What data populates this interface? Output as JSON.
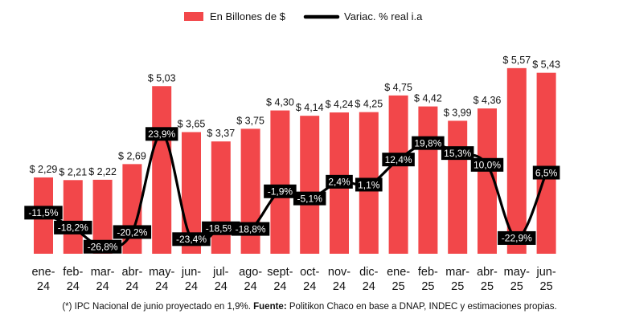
{
  "chart_data": {
    "type": "bar",
    "categories": [
      [
        "ene-",
        "24"
      ],
      [
        "feb-",
        "24"
      ],
      [
        "mar-",
        "24"
      ],
      [
        "abr-",
        "24"
      ],
      [
        "may-",
        "24"
      ],
      [
        "jun-",
        "24"
      ],
      [
        "jul-",
        "24"
      ],
      [
        "ago-",
        "24"
      ],
      [
        "sept-",
        "24"
      ],
      [
        "oct-",
        "24"
      ],
      [
        "nov-",
        "24"
      ],
      [
        "dic-",
        "24"
      ],
      [
        "ene-",
        "25"
      ],
      [
        "feb-",
        "25"
      ],
      [
        "mar-",
        "25"
      ],
      [
        "abr-",
        "25"
      ],
      [
        "may-",
        "25"
      ],
      [
        "jun-",
        "25"
      ]
    ],
    "series": [
      {
        "name": "En Billones de $",
        "type": "bar",
        "color": "#f2474a",
        "values": [
          2.29,
          2.21,
          2.22,
          2.69,
          5.03,
          3.65,
          3.37,
          3.75,
          4.3,
          4.14,
          4.24,
          4.25,
          4.75,
          4.42,
          3.99,
          4.36,
          5.57,
          5.43
        ],
        "labels": [
          "$ 2,29",
          "$ 2,21",
          "$ 2,22",
          "$ 2,69",
          "$ 5,03",
          "$ 3,65",
          "$ 3,37",
          "$ 3,75",
          "$ 4,30",
          "$ 4,14",
          "$ 4,24",
          "$ 4,25",
          "$ 4,75",
          "$ 4,42",
          "$ 3,99",
          "$ 4,36",
          "$ 5,57",
          "$ 5,43"
        ]
      },
      {
        "name": "Variac. % real i.a",
        "type": "line",
        "color": "#000000",
        "values": [
          -11.5,
          -18.2,
          -26.8,
          -20.2,
          23.9,
          -23.4,
          -18.5,
          -18.8,
          -1.9,
          -5.1,
          2.4,
          1.1,
          12.4,
          19.8,
          15.3,
          10.0,
          -22.9,
          6.5
        ],
        "labels": [
          "-11,5%",
          "-18,2%",
          "-26,8%",
          "-20,2%",
          "23,9%",
          "-23,4%",
          "-18,5%",
          "-18,8%",
          "-1,9%",
          "-5,1%",
          "2,4%",
          "1,1%",
          "12,4%",
          "19,8%",
          "15,3%",
          "10,0%",
          "-22,9%",
          "6,5%"
        ]
      }
    ],
    "legend": "top-center",
    "grid": false
  },
  "footnote": {
    "prefix": "(*) IPC Nacional de junio proyectado en 1,9%. ",
    "bold": "Fuente:",
    "suffix": " Politikon Chaco en base a DNAP, INDEC y estimaciones propias."
  }
}
